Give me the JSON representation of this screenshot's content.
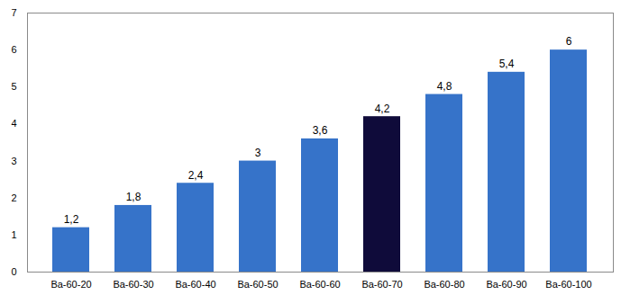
{
  "chart_data": {
    "type": "bar",
    "categories": [
      "Ba-60-20",
      "Ba-60-30",
      "Ba-60-40",
      "Ba-60-50",
      "Ba-60-60",
      "Ba-60-70",
      "Ba-60-80",
      "Ba-60-90",
      "Ba-60-100"
    ],
    "values": [
      1.2,
      1.8,
      2.4,
      3,
      3.6,
      4.2,
      4.8,
      5.4,
      6
    ],
    "value_labels": [
      "1,2",
      "1,8",
      "2,4",
      "3",
      "3,6",
      "4,2",
      "4,8",
      "5,4",
      "6"
    ],
    "colors": [
      "#3673c9",
      "#3673c9",
      "#3673c9",
      "#3673c9",
      "#3673c9",
      "#0f0b3a",
      "#3673c9",
      "#3673c9",
      "#3673c9"
    ],
    "ylim": [
      0,
      7
    ],
    "yticks": [
      0,
      1,
      2,
      3,
      4,
      5,
      6,
      7
    ],
    "grid": false,
    "data_labels": true
  }
}
